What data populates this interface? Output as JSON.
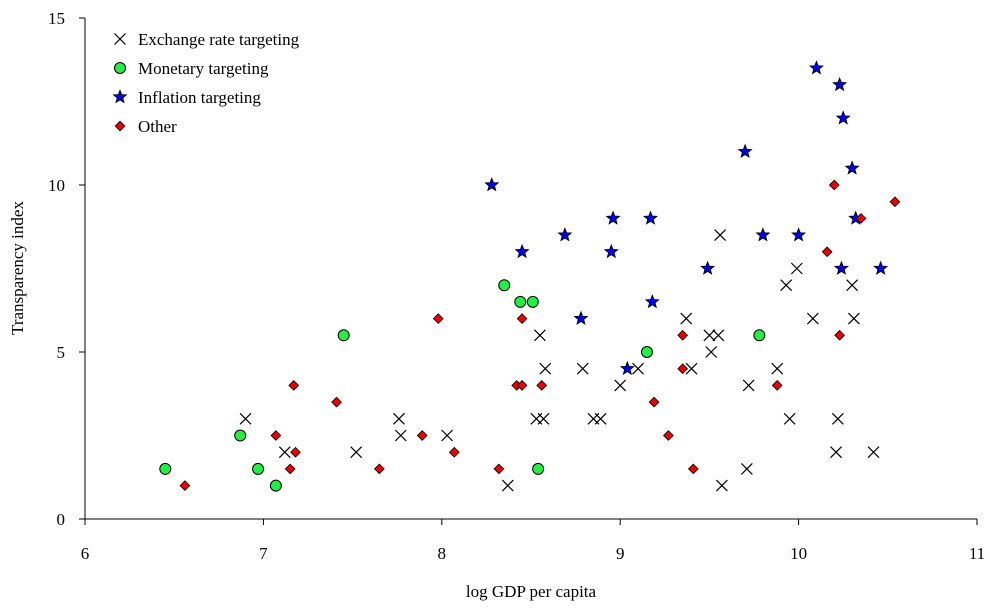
{
  "chart_data": {
    "type": "scatter",
    "title": "",
    "xlabel": "log GDP per capita",
    "ylabel": "Transparency index",
    "xlim": [
      6,
      11
    ],
    "ylim": [
      0,
      15
    ],
    "xticks": [
      "6",
      "7",
      "8",
      "9",
      "10",
      "11"
    ],
    "yticks": [
      "0",
      "5",
      "10",
      "15"
    ],
    "grid": false,
    "legend_position": "top-left",
    "series": [
      {
        "name": "Exchange rate targeting",
        "marker": "x",
        "color": "#000000",
        "points": [
          [
            6.9,
            3
          ],
          [
            7.12,
            2
          ],
          [
            7.52,
            2
          ],
          [
            7.76,
            3
          ],
          [
            7.77,
            2.5
          ],
          [
            8.03,
            2.5
          ],
          [
            8.37,
            1
          ],
          [
            8.53,
            3
          ],
          [
            8.55,
            5.5
          ],
          [
            8.57,
            3
          ],
          [
            8.58,
            4.5
          ],
          [
            8.79,
            4.5
          ],
          [
            8.85,
            3
          ],
          [
            8.89,
            3
          ],
          [
            9.0,
            4
          ],
          [
            9.1,
            4.5
          ],
          [
            9.37,
            6
          ],
          [
            9.4,
            4.5
          ],
          [
            9.5,
            5.5
          ],
          [
            9.51,
            5
          ],
          [
            9.55,
            5.5
          ],
          [
            9.56,
            8.5
          ],
          [
            9.57,
            1
          ],
          [
            9.72,
            4
          ],
          [
            9.71,
            1.5
          ],
          [
            9.88,
            4.5
          ],
          [
            9.93,
            7
          ],
          [
            9.95,
            3
          ],
          [
            9.99,
            7.5
          ],
          [
            10.08,
            6
          ],
          [
            10.22,
            3
          ],
          [
            10.21,
            2
          ],
          [
            10.3,
            7
          ],
          [
            10.31,
            6
          ],
          [
            10.42,
            2
          ]
        ]
      },
      {
        "name": "Monetary targeting",
        "marker": "circle",
        "color": "#22ee44",
        "points": [
          [
            6.45,
            1.5
          ],
          [
            6.87,
            2.5
          ],
          [
            6.97,
            1.5
          ],
          [
            7.07,
            1
          ],
          [
            7.45,
            5.5
          ],
          [
            8.35,
            7
          ],
          [
            8.44,
            6.5
          ],
          [
            8.51,
            6.5
          ],
          [
            8.54,
            1.5
          ],
          [
            9.15,
            5
          ],
          [
            9.78,
            5.5
          ]
        ]
      },
      {
        "name": "Inflation targeting",
        "marker": "star",
        "color": "#0000ee",
        "points": [
          [
            8.28,
            10
          ],
          [
            8.45,
            8
          ],
          [
            8.69,
            8.5
          ],
          [
            8.78,
            6
          ],
          [
            8.95,
            8
          ],
          [
            8.96,
            9
          ],
          [
            9.04,
            4.5
          ],
          [
            9.17,
            9
          ],
          [
            9.18,
            6.5
          ],
          [
            9.49,
            7.5
          ],
          [
            9.7,
            11
          ],
          [
            9.8,
            8.5
          ],
          [
            10.0,
            8.5
          ],
          [
            10.1,
            13.5
          ],
          [
            10.23,
            13
          ],
          [
            10.25,
            12
          ],
          [
            10.3,
            10.5
          ],
          [
            10.32,
            9
          ],
          [
            10.24,
            7.5
          ],
          [
            10.46,
            7.5
          ]
        ]
      },
      {
        "name": "Other",
        "marker": "diamond",
        "color": "#ee0000",
        "points": [
          [
            6.56,
            1
          ],
          [
            7.07,
            2.5
          ],
          [
            7.15,
            1.5
          ],
          [
            7.17,
            4
          ],
          [
            7.18,
            2
          ],
          [
            7.41,
            3.5
          ],
          [
            7.65,
            1.5
          ],
          [
            7.89,
            2.5
          ],
          [
            7.98,
            6
          ],
          [
            8.07,
            2
          ],
          [
            8.32,
            1.5
          ],
          [
            8.42,
            4
          ],
          [
            8.45,
            4
          ],
          [
            8.45,
            6
          ],
          [
            8.56,
            4
          ],
          [
            9.19,
            3.5
          ],
          [
            9.27,
            2.5
          ],
          [
            9.35,
            4.5
          ],
          [
            9.35,
            5.5
          ],
          [
            9.41,
            1.5
          ],
          [
            9.88,
            4
          ],
          [
            10.16,
            8
          ],
          [
            10.2,
            10
          ],
          [
            10.23,
            5.5
          ],
          [
            10.35,
            9
          ],
          [
            10.54,
            9.5
          ]
        ]
      }
    ]
  }
}
